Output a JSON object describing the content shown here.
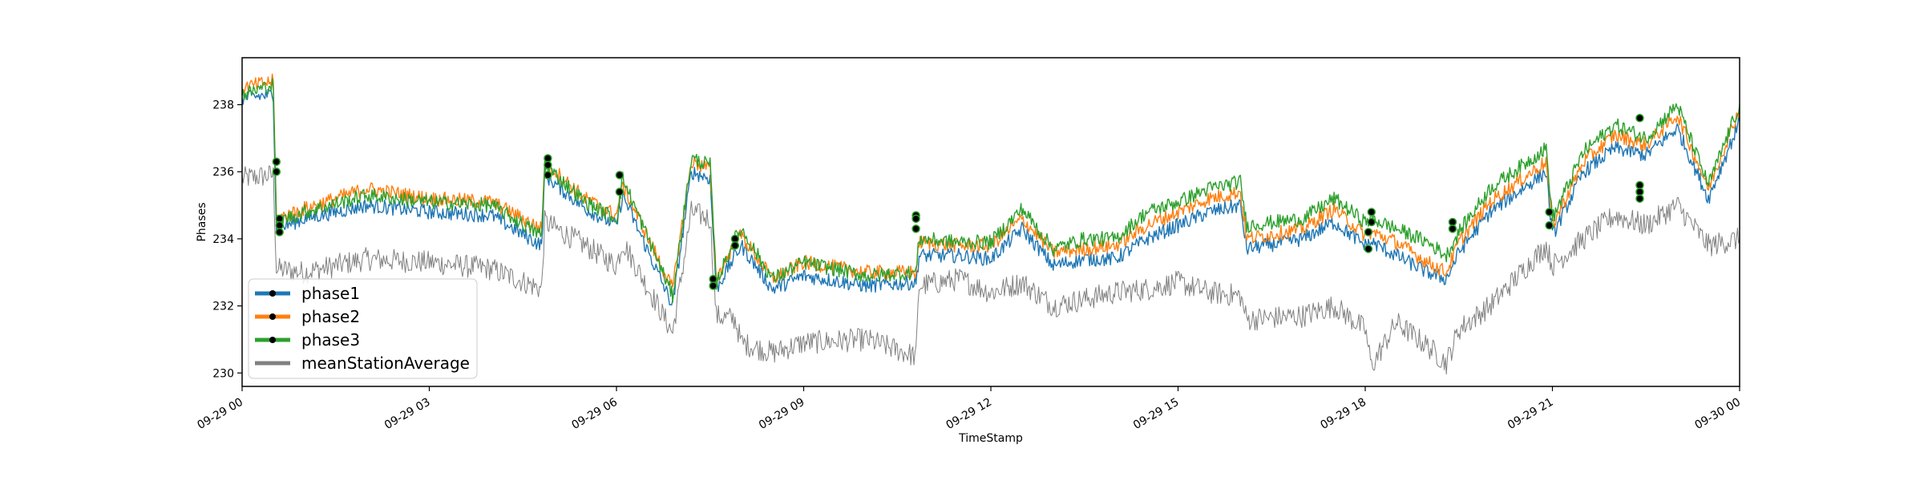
{
  "chart_data": {
    "type": "line",
    "title": "",
    "xlabel": "TimeStamp",
    "ylabel": "Phases",
    "x_ticks": [
      "09-29 00",
      "09-29 03",
      "09-29 06",
      "09-29 09",
      "09-29 12",
      "09-29 15",
      "09-29 18",
      "09-29 21",
      "09-30 00"
    ],
    "y_ticks": [
      "230",
      "232",
      "234",
      "236",
      "238"
    ],
    "xlim_hours": [
      0,
      24
    ],
    "ylim": [
      229.6,
      239.4
    ],
    "grid": false,
    "legend_position": "lower-left",
    "x_hours": [
      0,
      0.5,
      0.55,
      1,
      2,
      3,
      4,
      4.8,
      4.85,
      5.5,
      6,
      6.1,
      6.9,
      7.2,
      7.5,
      7.6,
      7.9,
      8,
      8.5,
      9,
      10,
      10.8,
      10.85,
      11.5,
      12,
      12.5,
      13,
      13.5,
      14,
      14.5,
      15,
      15.5,
      16,
      16.1,
      17,
      17.5,
      18,
      18.1,
      18.5,
      19,
      19.3,
      19.5,
      20,
      20.9,
      21,
      21.5,
      22,
      22.5,
      23,
      23.5,
      24
    ],
    "series": [
      {
        "name": "phase1",
        "color": "#1f77b4",
        "values": [
          238.2,
          238.3,
          234.3,
          234.6,
          235.0,
          234.8,
          234.7,
          233.8,
          235.9,
          234.9,
          234.4,
          235.3,
          232.0,
          236.0,
          235.8,
          232.5,
          233.5,
          233.8,
          232.5,
          232.9,
          232.6,
          232.7,
          233.5,
          233.5,
          233.4,
          234.3,
          233.2,
          233.4,
          233.4,
          234.0,
          234.4,
          234.8,
          235.0,
          233.7,
          234.0,
          234.5,
          233.8,
          233.9,
          233.5,
          233.0,
          232.8,
          233.6,
          234.8,
          236.0,
          234.1,
          236.0,
          236.7,
          236.5,
          237.3,
          235.2,
          237.5
        ]
      },
      {
        "name": "phase2",
        "color": "#ff7f0e",
        "values": [
          238.5,
          238.7,
          234.6,
          234.9,
          235.5,
          235.2,
          235.1,
          234.3,
          236.3,
          235.2,
          234.7,
          235.6,
          232.5,
          236.3,
          236.1,
          232.8,
          233.9,
          234.1,
          232.8,
          233.3,
          233.0,
          233.0,
          233.9,
          233.8,
          233.8,
          234.6,
          233.6,
          233.7,
          233.8,
          234.4,
          234.8,
          235.2,
          235.4,
          234.0,
          234.3,
          234.9,
          234.1,
          234.2,
          233.9,
          233.3,
          233.0,
          233.9,
          235.1,
          236.3,
          234.4,
          236.3,
          237.1,
          236.8,
          237.7,
          235.5,
          237.9
        ]
      },
      {
        "name": "phase3",
        "color": "#2ca02c",
        "values": [
          238.3,
          238.6,
          234.5,
          234.8,
          235.3,
          235.1,
          235.0,
          234.1,
          236.2,
          235.1,
          234.6,
          235.8,
          232.3,
          236.4,
          236.2,
          232.7,
          234.0,
          234.3,
          232.8,
          233.3,
          232.9,
          233.0,
          234.0,
          233.9,
          233.9,
          234.9,
          233.7,
          234.0,
          234.0,
          234.8,
          235.1,
          235.5,
          235.7,
          234.4,
          234.6,
          235.2,
          234.5,
          234.6,
          234.3,
          233.9,
          233.5,
          234.2,
          235.5,
          236.7,
          234.6,
          236.6,
          237.4,
          237.0,
          238.0,
          235.6,
          238.0
        ]
      },
      {
        "name": "meanStationAverage",
        "color": "#808080",
        "values": [
          235.8,
          235.9,
          233.1,
          233.0,
          233.4,
          233.3,
          233.1,
          232.5,
          234.5,
          233.8,
          233.2,
          233.9,
          231.2,
          234.8,
          234.6,
          231.7,
          231.6,
          230.9,
          230.6,
          230.9,
          231.0,
          230.5,
          232.6,
          232.8,
          232.4,
          232.7,
          232.0,
          232.2,
          232.4,
          232.5,
          232.7,
          232.4,
          232.3,
          231.6,
          231.7,
          232.0,
          231.3,
          230.2,
          231.5,
          230.8,
          230.3,
          231.3,
          232.0,
          233.8,
          233.2,
          234.0,
          234.7,
          234.4,
          235.0,
          233.8,
          234.0
        ]
      }
    ],
    "markers": [
      {
        "x": 0.55,
        "y": 236.3
      },
      {
        "x": 0.55,
        "y": 236.0
      },
      {
        "x": 0.6,
        "y": 234.6
      },
      {
        "x": 0.6,
        "y": 234.4
      },
      {
        "x": 0.6,
        "y": 234.2
      },
      {
        "x": 4.9,
        "y": 236.4
      },
      {
        "x": 4.9,
        "y": 236.2
      },
      {
        "x": 4.9,
        "y": 235.9
      },
      {
        "x": 6.05,
        "y": 235.9
      },
      {
        "x": 6.05,
        "y": 235.4
      },
      {
        "x": 7.55,
        "y": 232.8
      },
      {
        "x": 7.55,
        "y": 232.6
      },
      {
        "x": 7.9,
        "y": 234.0
      },
      {
        "x": 7.9,
        "y": 233.8
      },
      {
        "x": 10.8,
        "y": 234.7
      },
      {
        "x": 10.8,
        "y": 234.6
      },
      {
        "x": 10.8,
        "y": 234.3
      },
      {
        "x": 18.05,
        "y": 234.2
      },
      {
        "x": 18.1,
        "y": 234.8
      },
      {
        "x": 18.1,
        "y": 234.5
      },
      {
        "x": 18.05,
        "y": 233.7
      },
      {
        "x": 19.4,
        "y": 234.5
      },
      {
        "x": 19.4,
        "y": 234.3
      },
      {
        "x": 20.95,
        "y": 234.8
      },
      {
        "x": 20.95,
        "y": 234.4
      },
      {
        "x": 22.4,
        "y": 235.6
      },
      {
        "x": 22.4,
        "y": 235.4
      },
      {
        "x": 22.4,
        "y": 235.2
      },
      {
        "x": 22.4,
        "y": 237.6
      }
    ]
  }
}
